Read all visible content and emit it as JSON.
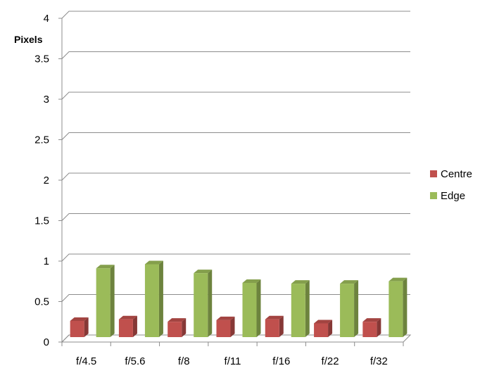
{
  "chart_data": {
    "type": "bar",
    "ylabel": "Pixels",
    "categories": [
      "f/4.5",
      "f/5.6",
      "f/8",
      "f/11",
      "f/16",
      "f/22",
      "f/32"
    ],
    "series": [
      {
        "name": "Centre",
        "values": [
          0.2,
          0.22,
          0.19,
          0.21,
          0.22,
          0.17,
          0.19
        ],
        "color": "#c0504d"
      },
      {
        "name": "Edge",
        "values": [
          0.85,
          0.9,
          0.79,
          0.67,
          0.66,
          0.66,
          0.69
        ],
        "color": "#9bbb59"
      }
    ],
    "ylim": [
      0,
      4
    ],
    "yticks": [
      "0",
      "0.5",
      "1",
      "1.5",
      "2",
      "2.5",
      "3",
      "3.5",
      "4"
    ],
    "grid": true,
    "legend_position": "right"
  }
}
